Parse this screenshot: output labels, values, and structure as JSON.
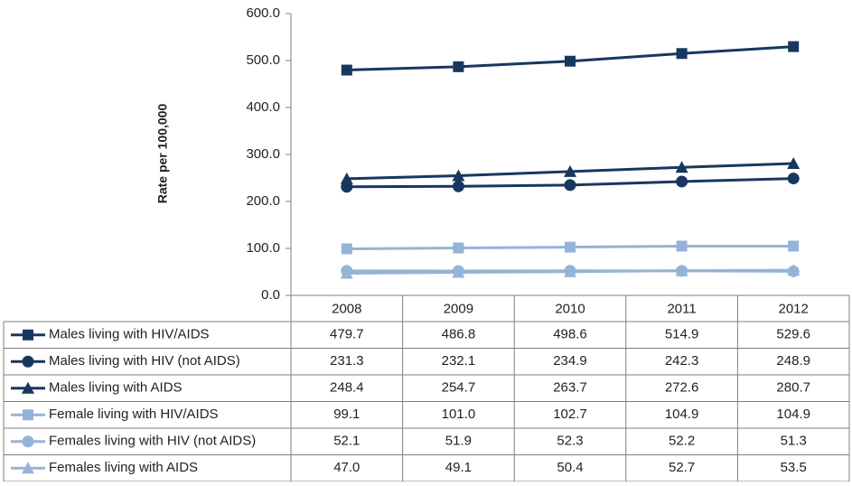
{
  "chart_data": {
    "type": "line",
    "y_label": "Rate per 100,000",
    "categories": [
      "2008",
      "2009",
      "2010",
      "2011",
      "2012"
    ],
    "ylim": [
      0,
      600
    ],
    "yticks": [
      {
        "value": 0,
        "label": "0.0"
      },
      {
        "value": 100,
        "label": "100.0"
      },
      {
        "value": 200,
        "label": "200.0"
      },
      {
        "value": 300,
        "label": "300.0"
      },
      {
        "value": 400,
        "label": "400.0"
      },
      {
        "value": 500,
        "label": "500.0"
      },
      {
        "value": 600,
        "label": "600.0"
      }
    ],
    "grid": false,
    "series": [
      {
        "name": "Males living with HIV/AIDS",
        "color": "#17375e",
        "marker": "square",
        "values": [
          479.7,
          486.8,
          498.6,
          514.9,
          529.6
        ],
        "value_labels": [
          "479.7",
          "486.8",
          "498.6",
          "514.9",
          "529.6"
        ]
      },
      {
        "name": "Males living with HIV (not AIDS)",
        "color": "#17375e",
        "marker": "circle",
        "values": [
          231.3,
          232.1,
          234.9,
          242.3,
          248.9
        ],
        "value_labels": [
          "231.3",
          "232.1",
          "234.9",
          "242.3",
          "248.9"
        ]
      },
      {
        "name": "Males living with AIDS",
        "color": "#17375e",
        "marker": "triangle",
        "values": [
          248.4,
          254.7,
          263.7,
          272.6,
          280.7
        ],
        "value_labels": [
          "248.4",
          "254.7",
          "263.7",
          "272.6",
          "280.7"
        ]
      },
      {
        "name": "Female living with HIV/AIDS",
        "color": "#95b3d7",
        "marker": "square",
        "values": [
          99.1,
          101.0,
          102.7,
          104.9,
          104.9
        ],
        "value_labels": [
          "99.1",
          "101.0",
          "102.7",
          "104.9",
          "104.9"
        ]
      },
      {
        "name": "Females living with HIV (not AIDS)",
        "color": "#95b3d7",
        "marker": "circle",
        "values": [
          52.1,
          51.9,
          52.3,
          52.2,
          51.3
        ],
        "value_labels": [
          "52.1",
          "51.9",
          "52.3",
          "52.2",
          "51.3"
        ]
      },
      {
        "name": "Females living with AIDS",
        "color": "#95b3d7",
        "marker": "triangle",
        "values": [
          47.0,
          49.1,
          50.4,
          52.7,
          53.5
        ],
        "value_labels": [
          "47.0",
          "49.1",
          "50.4",
          "52.7",
          "53.5"
        ]
      }
    ]
  }
}
